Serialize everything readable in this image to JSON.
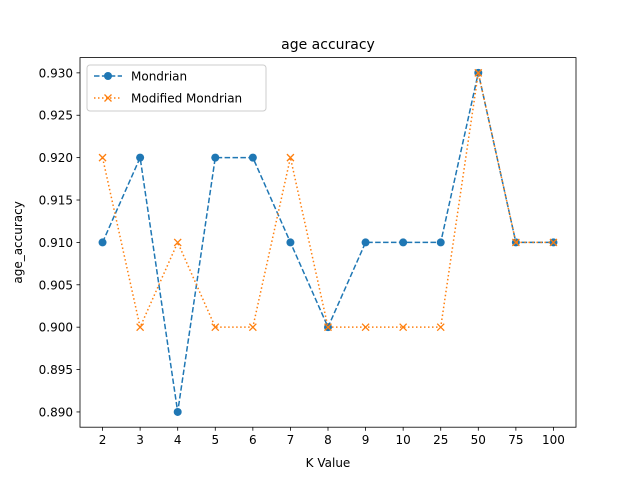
{
  "chart_data": {
    "type": "line",
    "title": "age accuracy",
    "xlabel": "K Value",
    "ylabel": "age_accuracy",
    "categories": [
      "2",
      "3",
      "4",
      "5",
      "6",
      "7",
      "8",
      "9",
      "10",
      "25",
      "50",
      "75",
      "100"
    ],
    "ylim": [
      0.8882,
      0.9318
    ],
    "yticks": [
      "0.890",
      "0.895",
      "0.900",
      "0.905",
      "0.910",
      "0.915",
      "0.920",
      "0.925",
      "0.930"
    ],
    "grid": false,
    "legend_position": "top-left",
    "series": [
      {
        "name": "Mondrian",
        "values": [
          0.91,
          0.92,
          0.89,
          0.92,
          0.92,
          0.91,
          0.9,
          0.91,
          0.91,
          0.91,
          0.93,
          0.91,
          0.91
        ],
        "color": "#1f77b4",
        "linestyle": "dashed",
        "marker": "circle"
      },
      {
        "name": "Modified Mondrian",
        "values": [
          0.92,
          0.9,
          0.91,
          0.9,
          0.9,
          0.92,
          0.9,
          0.9,
          0.9,
          0.9,
          0.93,
          0.91,
          0.91
        ],
        "color": "#ff7f0e",
        "linestyle": "dotted",
        "marker": "x"
      }
    ]
  }
}
